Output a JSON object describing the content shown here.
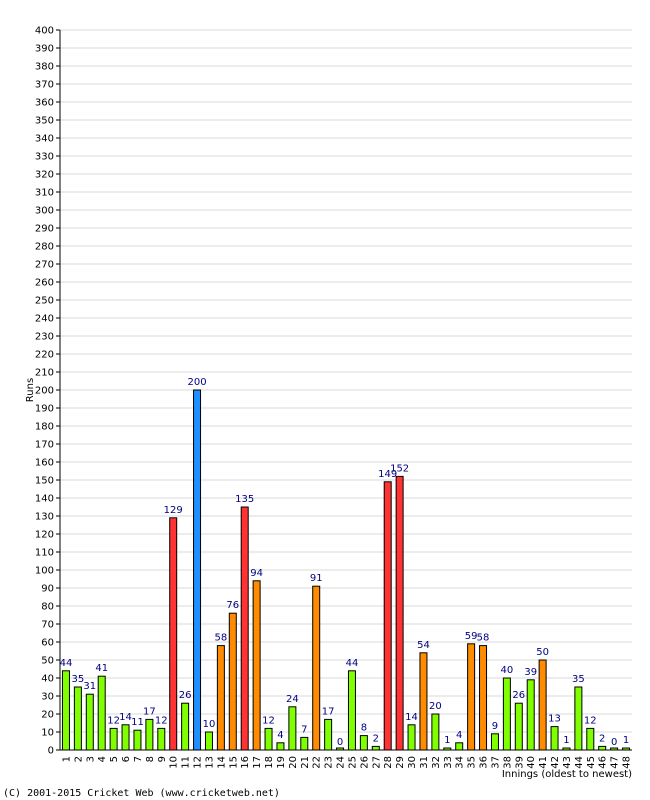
{
  "chart_data": {
    "type": "bar",
    "title": "",
    "xlabel": "Innings (oldest to newest)",
    "ylabel": "Runs",
    "ylim": [
      0,
      400
    ],
    "ytick_step": 10,
    "grid": true,
    "categories": [
      "1",
      "2",
      "3",
      "4",
      "5",
      "6",
      "7",
      "8",
      "9",
      "10",
      "11",
      "12",
      "13",
      "14",
      "15",
      "16",
      "17",
      "18",
      "19",
      "20",
      "21",
      "22",
      "23",
      "24",
      "25",
      "26",
      "27",
      "28",
      "29",
      "30",
      "31",
      "32",
      "33",
      "34",
      "35",
      "36",
      "37",
      "38",
      "39",
      "40",
      "41",
      "42",
      "43",
      "44",
      "45",
      "46",
      "47",
      "48"
    ],
    "values": [
      44,
      35,
      31,
      41,
      12,
      14,
      11,
      17,
      12,
      129,
      26,
      200,
      10,
      58,
      76,
      135,
      94,
      12,
      4,
      24,
      7,
      91,
      17,
      0,
      44,
      8,
      2,
      149,
      152,
      14,
      54,
      20,
      1,
      4,
      59,
      58,
      9,
      40,
      26,
      39,
      50,
      13,
      1,
      35,
      12,
      2,
      0,
      1
    ],
    "value_labels": [
      "44",
      "35",
      "31",
      "41",
      "12",
      "14",
      "11",
      "17",
      "12",
      "129",
      "26",
      "200",
      "10",
      "58",
      "76",
      "135",
      "94",
      "12",
      "4",
      "24",
      "7",
      "91",
      "17",
      "0",
      "44",
      "8",
      "2",
      "149",
      "152",
      "14",
      "54",
      "20",
      "1",
      "4",
      "59",
      "58",
      "9",
      "40",
      "26",
      "39",
      "50",
      "13",
      "1",
      "35",
      "12",
      "2",
      "0",
      "1"
    ],
    "bar_color_groups": [
      "green",
      "green",
      "green",
      "green",
      "green",
      "green",
      "green",
      "green",
      "green",
      "red",
      "green",
      "blue",
      "green",
      "orange",
      "orange",
      "red",
      "orange",
      "green",
      "green",
      "green",
      "green",
      "orange",
      "green",
      "green",
      "green",
      "green",
      "green",
      "red",
      "red",
      "green",
      "orange",
      "green",
      "green",
      "green",
      "orange",
      "orange",
      "green",
      "green",
      "green",
      "green",
      "orange",
      "green",
      "green",
      "green",
      "green",
      "green",
      "green",
      "green"
    ],
    "colors": {
      "green": "#80ff00",
      "orange": "#ff8c00",
      "red": "#ff3333",
      "blue": "#1e90ff",
      "value_label": "#000080",
      "grid": "#d9d9d9"
    }
  },
  "footer": {
    "copyright": "(C) 2001-2015 Cricket Web (www.cricketweb.net)"
  }
}
